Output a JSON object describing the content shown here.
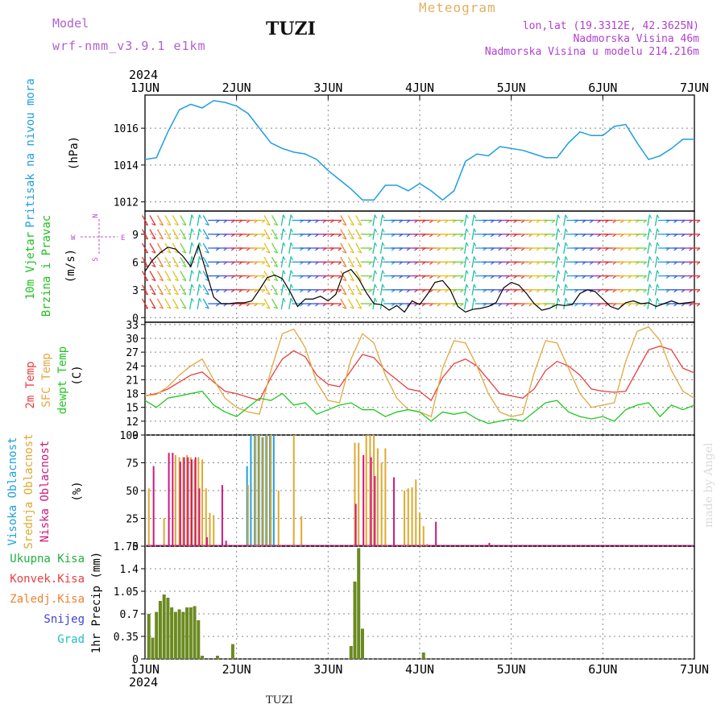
{
  "header": {
    "model_label": "Model",
    "model_name": "wrf-nmm_v3.9.1  e1km",
    "station": "TUZI",
    "meteogram": "Meteogram",
    "lonlat": "lon,lat (19.3312E, 42.3625N)",
    "elevation": "Nadmorska Visina 46m",
    "model_elevation": "Nadmorska Visina u modelu 214.216m",
    "footer_station": "TUZI",
    "watermark": "made by Angel",
    "year": "2024",
    "colors": {
      "model": "#b060d0",
      "meteogram": "#e0b060",
      "info": "#b040d0",
      "title": "#111111"
    }
  },
  "time_axis": {
    "labels": [
      "1JUN",
      "2JUN",
      "3JUN",
      "4JUN",
      "5JUN",
      "6JUN",
      "7JUN"
    ],
    "year_label": "2024"
  },
  "panels": {
    "pressure": {
      "ylabel": "Pritisak na nivou mora",
      "unit": "(hPa)",
      "ticks": [
        "1012",
        "1014",
        "1016"
      ],
      "color": "#1e9ee0"
    },
    "wind": {
      "ylabel1": "10m Vjetar",
      "ylabel2": "Brzina i Pravac",
      "unit": "(m/s)",
      "ticks": [
        "0",
        "3",
        "6",
        "9"
      ],
      "compass": {
        "n": "N",
        "w": "W",
        "e": "E",
        "s": "S"
      },
      "colors": {
        "label": "#20c020",
        "compass": "#c050d0"
      }
    },
    "temperature": {
      "label_2m": "2m Temp",
      "label_sfc": "SFC Temp",
      "label_dew": "dewpt Temp",
      "unit": "(C)",
      "ticks": [
        "9",
        "12",
        "15",
        "18",
        "21",
        "24",
        "27",
        "30",
        "33"
      ],
      "colors": {
        "t2m": "#e84040",
        "sfc": "#e0a840",
        "dew": "#20c820"
      }
    },
    "cloud": {
      "label_high": "Visoka Oblacnost",
      "label_mid": "Srednja Oblacnost",
      "label_low": "Niska Oblacnost",
      "unit": "(%)",
      "ticks": [
        "0",
        "25",
        "50",
        "75",
        "100"
      ],
      "colors": {
        "high": "#20a0e0",
        "mid": "#e0a830",
        "low": "#d01880"
      }
    },
    "precip": {
      "ylabel": "1hr Precip (mm)",
      "ticks": [
        "0",
        "0.35",
        "0.7",
        "1.05",
        "1.4",
        "1.75"
      ],
      "legend": [
        {
          "label": "Ukupna Kisa",
          "color": "#20b040"
        },
        {
          "label": "Konvek.Kisa",
          "color": "#e84040"
        },
        {
          "label": "Zaledj.Kisa",
          "color": "#f08030"
        },
        {
          "label": "Snijeg",
          "color": "#4040e0"
        },
        {
          "label": "Grad",
          "color": "#20c0c0"
        }
      ],
      "bar_color": "#6a8a20"
    }
  },
  "chart_data": [
    {
      "type": "line",
      "panel": "pressure",
      "x_unit": "hours since 1JUN 00",
      "ylim": [
        1011.5,
        1017.8
      ],
      "series": [
        {
          "x": [
            0,
            3,
            6,
            9,
            12,
            15,
            18,
            21,
            24,
            27,
            30,
            33,
            36,
            39,
            42,
            45,
            48,
            51,
            54,
            57,
            60,
            63,
            66,
            69,
            72,
            75,
            78,
            81,
            84,
            87,
            90,
            93,
            96,
            99,
            102,
            105,
            108,
            111,
            114,
            117,
            120,
            123,
            126,
            129,
            132,
            135,
            138,
            141,
            144
          ],
          "values": [
            1014.3,
            1014.4,
            1015.8,
            1017.0,
            1017.3,
            1017.1,
            1017.5,
            1017.4,
            1017.2,
            1016.8,
            1016.0,
            1015.2,
            1014.9,
            1014.7,
            1014.6,
            1014.3,
            1013.7,
            1013.2,
            1012.7,
            1012.1,
            1012.1,
            1012.9,
            1012.9,
            1012.6,
            1013.0,
            1012.6,
            1012.1,
            1012.6,
            1014.2,
            1014.6,
            1014.5,
            1015.0,
            1014.9,
            1014.8,
            1014.6,
            1014.4,
            1014.4,
            1015.2,
            1015.8,
            1015.6,
            1015.6,
            1016.1,
            1016.2,
            1015.2,
            1014.3,
            1014.5,
            1014.9,
            1015.4,
            1015.4
          ]
        }
      ]
    },
    {
      "type": "line",
      "panel": "wind",
      "x_unit": "hours since 1JUN 00",
      "ylim": [
        -0.5,
        11.5
      ],
      "series": [
        {
          "name": "10m Vjetar",
          "x": [
            0,
            2,
            4,
            6,
            8,
            10,
            12,
            14,
            16,
            18,
            20,
            22,
            24,
            26,
            28,
            30,
            32,
            34,
            36,
            38,
            40,
            42,
            44,
            46,
            48,
            50,
            52,
            54,
            56,
            58,
            60,
            62,
            64,
            66,
            68,
            70,
            72,
            74,
            76,
            78,
            80,
            82,
            84,
            86,
            88,
            90,
            92,
            94,
            96,
            98,
            100,
            102,
            104,
            106,
            108,
            110,
            112,
            114,
            116,
            118,
            120,
            122,
            124,
            126,
            128,
            130,
            132,
            134,
            136,
            138,
            140,
            142,
            144
          ],
          "values": [
            5.0,
            6.2,
            7.0,
            7.6,
            7.4,
            6.6,
            5.5,
            7.8,
            5.0,
            2.2,
            1.5,
            1.5,
            1.6,
            1.6,
            1.8,
            3.0,
            4.3,
            4.6,
            4.2,
            2.8,
            1.2,
            2.0,
            2.0,
            2.3,
            1.8,
            2.5,
            4.8,
            5.2,
            4.2,
            2.7,
            1.5,
            1.4,
            0.8,
            1.3,
            0.6,
            1.8,
            1.4,
            2.5,
            3.8,
            4.0,
            3.0,
            1.2,
            0.6,
            0.9,
            1.0,
            1.2,
            1.6,
            3.2,
            3.8,
            3.5,
            2.6,
            1.5,
            0.8,
            1.0,
            1.4,
            1.3,
            1.4,
            2.6,
            3.0,
            2.8,
            2.0,
            1.2,
            0.9,
            1.6,
            1.8,
            1.5,
            1.6,
            1.2,
            1.5,
            1.8,
            1.5,
            1.6,
            1.7
          ]
        }
      ]
    },
    {
      "type": "line",
      "panel": "temperature",
      "x_unit": "hours since 1JUN 00",
      "ylim": [
        9,
        33.5
      ],
      "series": [
        {
          "name": "2m Temp",
          "x": [
            0,
            3,
            6,
            9,
            12,
            15,
            18,
            21,
            24,
            27,
            30,
            33,
            36,
            39,
            42,
            45,
            48,
            51,
            54,
            57,
            60,
            63,
            66,
            69,
            72,
            75,
            78,
            81,
            84,
            87,
            90,
            93,
            96,
            99,
            102,
            105,
            108,
            111,
            114,
            117,
            120,
            123,
            126,
            129,
            132,
            135,
            138,
            141,
            144
          ],
          "values": [
            17.5,
            18.0,
            19.0,
            20.5,
            22.0,
            22.7,
            20.5,
            18.5,
            18.0,
            17.2,
            16.5,
            21.5,
            25.5,
            27.3,
            26.0,
            22.0,
            20.0,
            19.5,
            23.0,
            26.5,
            25.8,
            23.0,
            21.0,
            19.0,
            18.5,
            16.5,
            21.5,
            24.5,
            25.5,
            24.0,
            21.0,
            18.0,
            17.5,
            17.0,
            19.0,
            23.0,
            25.0,
            24.0,
            22.0,
            19.0,
            18.5,
            18.3,
            18.5,
            23.0,
            27.5,
            28.3,
            27.5,
            23.5,
            22.5
          ]
        },
        {
          "name": "SFC Temp",
          "x": [
            0,
            3,
            6,
            9,
            12,
            15,
            18,
            21,
            24,
            27,
            30,
            33,
            36,
            39,
            42,
            45,
            48,
            51,
            54,
            57,
            60,
            63,
            66,
            69,
            72,
            75,
            78,
            81,
            84,
            87,
            90,
            93,
            96,
            99,
            102,
            105,
            108,
            111,
            114,
            117,
            120,
            123,
            126,
            129,
            132,
            135,
            138,
            141,
            144
          ],
          "values": [
            17.5,
            17.8,
            19.5,
            22.0,
            24.0,
            25.5,
            21.0,
            17.0,
            15.0,
            14.0,
            13.5,
            23.0,
            31.0,
            32.0,
            28.0,
            20.5,
            16.5,
            16.0,
            25.5,
            31.0,
            29.0,
            22.0,
            17.0,
            14.5,
            14.0,
            13.0,
            23.5,
            29.5,
            29.0,
            24.0,
            18.0,
            14.0,
            13.0,
            13.5,
            22.5,
            29.5,
            29.0,
            23.5,
            18.0,
            15.0,
            15.5,
            16.0,
            25.0,
            31.5,
            32.5,
            29.5,
            23.0,
            18.5,
            17.0
          ]
        },
        {
          "name": "dewpt Temp",
          "x": [
            0,
            3,
            6,
            9,
            12,
            15,
            18,
            21,
            24,
            27,
            30,
            33,
            36,
            39,
            42,
            45,
            48,
            51,
            54,
            57,
            60,
            63,
            66,
            69,
            72,
            75,
            78,
            81,
            84,
            87,
            90,
            93,
            96,
            99,
            102,
            105,
            108,
            111,
            114,
            117,
            120,
            123,
            126,
            129,
            132,
            135,
            138,
            141,
            144
          ],
          "values": [
            16.5,
            15.0,
            17.0,
            17.5,
            18.0,
            18.5,
            15.5,
            14.0,
            13.0,
            15.0,
            17.0,
            16.5,
            18.0,
            15.5,
            16.0,
            13.5,
            14.5,
            15.5,
            16.0,
            14.5,
            14.5,
            13.0,
            14.0,
            14.5,
            14.0,
            12.0,
            14.0,
            13.5,
            14.0,
            12.5,
            11.5,
            12.0,
            12.5,
            12.0,
            14.0,
            16.0,
            16.5,
            14.0,
            13.0,
            12.5,
            13.0,
            12.0,
            14.5,
            15.5,
            16.0,
            13.0,
            15.5,
            14.5,
            15.5
          ]
        }
      ]
    },
    {
      "type": "bar",
      "panel": "cloud",
      "x_unit": "hours since 1JUN 00",
      "ylim": [
        0,
        100
      ],
      "series": [
        {
          "name": "Visoka Oblacnost",
          "x": [
            27,
            28,
            29,
            30,
            31,
            32,
            33,
            34
          ],
          "values": [
            72,
            100,
            100,
            100,
            98,
            100,
            100,
            100
          ]
        },
        {
          "name": "Srednja Oblacnost",
          "x": [
            1,
            5,
            8,
            9,
            10,
            11,
            12,
            13,
            14,
            15,
            16,
            17,
            18,
            27,
            29,
            30,
            31,
            32,
            33,
            35,
            39,
            41,
            55,
            56,
            58,
            59,
            60,
            61,
            62,
            63,
            68,
            69,
            70,
            71,
            72,
            73,
            74
          ],
          "values": [
            52,
            25,
            82,
            80,
            80,
            82,
            80,
            78,
            80,
            78,
            52,
            30,
            28,
            55,
            100,
            100,
            98,
            100,
            100,
            50,
            100,
            27,
            93,
            93,
            100,
            100,
            100,
            88,
            75,
            88,
            50,
            52,
            53,
            60,
            30,
            18,
            2
          ]
        },
        {
          "name": "Niska Oblacnost",
          "x": [
            2,
            6,
            7,
            9,
            10,
            11,
            12,
            13,
            14,
            16,
            20,
            21,
            55,
            57,
            59,
            60,
            65,
            76,
            90
          ],
          "values": [
            72,
            84,
            84,
            76,
            80,
            80,
            78,
            80,
            52,
            8,
            55,
            5,
            38,
            82,
            80,
            63,
            62,
            22,
            3
          ]
        }
      ]
    },
    {
      "type": "bar",
      "panel": "precip",
      "x_unit": "hours since 1JUN 00",
      "ylim": [
        0,
        1.75
      ],
      "series": [
        {
          "name": "Ukupna Kisa",
          "x": [
            1,
            2,
            3,
            4,
            5,
            6,
            7,
            8,
            9,
            10,
            11,
            12,
            13,
            14,
            15,
            19,
            23,
            54,
            55,
            56,
            57,
            58,
            73
          ],
          "values": [
            0.7,
            0.33,
            0.73,
            0.9,
            1.0,
            0.95,
            0.8,
            0.73,
            0.77,
            0.73,
            0.8,
            0.8,
            0.82,
            0.6,
            0.05,
            0.05,
            0.23,
            0.2,
            1.2,
            1.72,
            0.47,
            0.0,
            0.1
          ]
        }
      ]
    }
  ]
}
